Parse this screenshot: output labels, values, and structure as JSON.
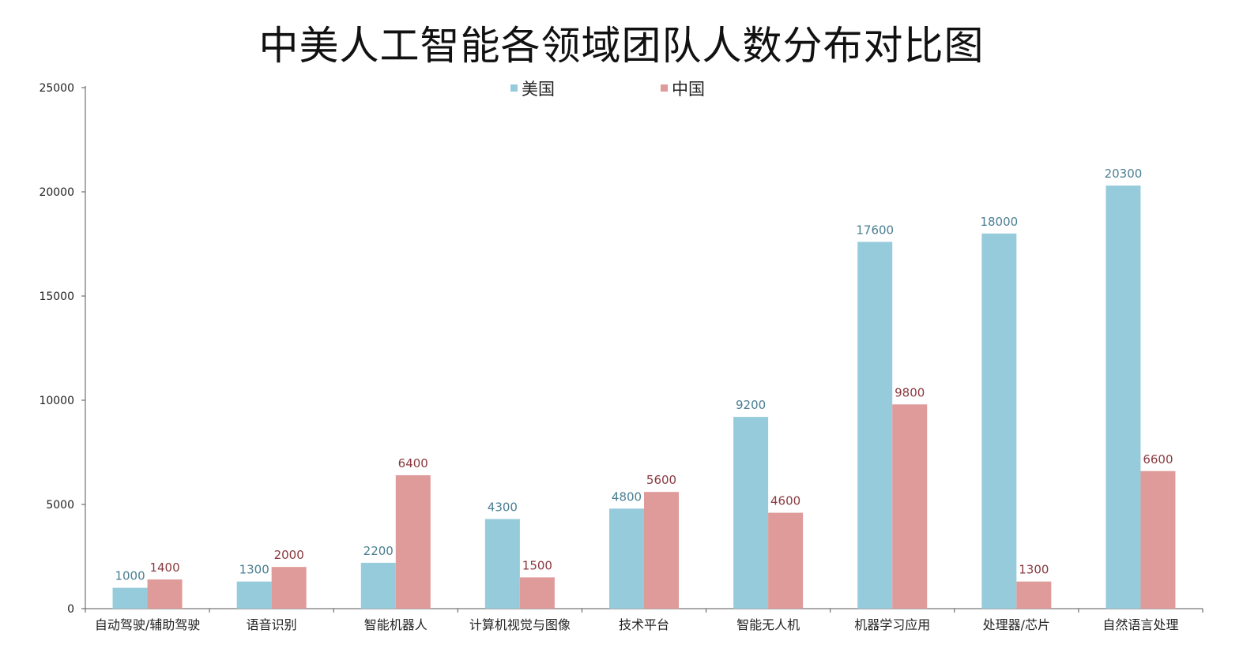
{
  "chart_data": {
    "type": "bar",
    "title": "中美人工智能各领域团队人数分布对比图",
    "xlabel": "",
    "ylabel": "",
    "ylim": [
      0,
      25000
    ],
    "yticks": [
      0,
      5000,
      10000,
      15000,
      20000,
      25000
    ],
    "grid": false,
    "legend_position": "top-center",
    "categories": [
      "自动驾驶/辅助驾驶",
      "语音识别",
      "智能机器人",
      "计算机视觉与图像",
      "技术平台",
      "智能无人机",
      "机器学习应用",
      "处理器/芯片",
      "自然语言处理"
    ],
    "series": [
      {
        "name": "美国",
        "color": "#96cbdb",
        "label_color": "#4a7f92",
        "values": [
          1000,
          1300,
          2200,
          4300,
          4800,
          9200,
          17600,
          18000,
          20300
        ]
      },
      {
        "name": "中国",
        "color": "#df9a9a",
        "label_color": "#8a3a40",
        "values": [
          1400,
          2000,
          6400,
          1500,
          5600,
          4600,
          9800,
          1300,
          6600
        ]
      }
    ]
  }
}
